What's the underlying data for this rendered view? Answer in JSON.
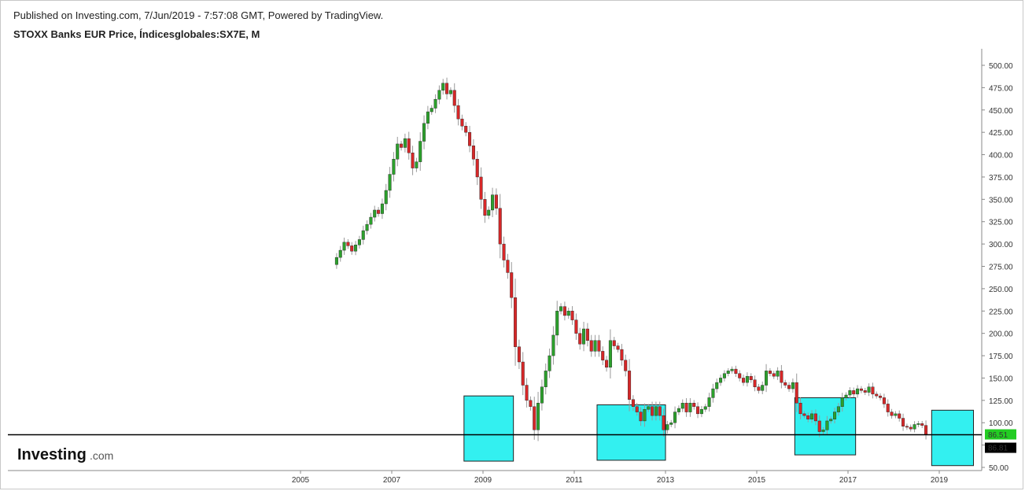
{
  "header": {
    "published": "Published on Investing.com, 7/Jun/2019 - 7:57:08 GMT, Powered by TradingView.",
    "title": "STOXX Banks EUR Price, Índicesglobales:SX7E, M"
  },
  "logo": {
    "main": "Investing",
    "suffix": ".com"
  },
  "colors": {
    "up": "#2ca02c",
    "down": "#d62728",
    "highlight_fill": "#33f0f0",
    "highlight_stroke": "#222222",
    "hline": "#000000",
    "last_badge": "#22cc22",
    "hline_badge": "#000000"
  },
  "chart_data": {
    "type": "candlestick",
    "interval": "M",
    "x_axis": {
      "ticks": [
        "2005",
        "2007",
        "2009",
        "2011",
        "2013",
        "2015",
        "2017",
        "2019"
      ]
    },
    "y_axis": {
      "position": "right",
      "ylim": [
        50,
        510
      ],
      "ticks": [
        "500.00",
        "475.00",
        "450.00",
        "425.00",
        "400.00",
        "375.00",
        "350.00",
        "325.00",
        "300.00",
        "275.00",
        "250.00",
        "225.00",
        "200.00",
        "175.00",
        "150.00",
        "125.00",
        "100.00",
        "75.00",
        "50.00"
      ]
    },
    "start": "2005-10",
    "closes": [
      285,
      293,
      302,
      298,
      292,
      299,
      305,
      315,
      322,
      330,
      338,
      334,
      345,
      360,
      378,
      395,
      412,
      408,
      418,
      402,
      385,
      392,
      415,
      435,
      448,
      452,
      462,
      472,
      480,
      468,
      472,
      455,
      440,
      432,
      425,
      410,
      395,
      375,
      350,
      332,
      338,
      355,
      340,
      300,
      282,
      268,
      240,
      185,
      168,
      142,
      125,
      118,
      92,
      122,
      140,
      158,
      175,
      198,
      225,
      230,
      220,
      225,
      215,
      200,
      188,
      205,
      192,
      180,
      192,
      180,
      170,
      162,
      192,
      186,
      182,
      170,
      158,
      126,
      118,
      112,
      102,
      115,
      118,
      108,
      118,
      108,
      92,
      98,
      100,
      112,
      116,
      122,
      112,
      122,
      118,
      110,
      115,
      118,
      128,
      138,
      145,
      150,
      155,
      158,
      160,
      155,
      150,
      145,
      152,
      148,
      140,
      136,
      142,
      158,
      155,
      152,
      158,
      145,
      142,
      138,
      145,
      122,
      110,
      108,
      104,
      110,
      102,
      90,
      92,
      102,
      104,
      112,
      118,
      128,
      131,
      136,
      132,
      138,
      136,
      134,
      140,
      132,
      130,
      128,
      121,
      112,
      108,
      110,
      105,
      96,
      95,
      93,
      98,
      99,
      97,
      86.81
    ],
    "hline": {
      "value": 86.51,
      "label": "86.51"
    },
    "last_label": "86.81",
    "highlight_boxes": [
      {
        "x_start": "2008-08",
        "x_end": "2009-09",
        "y_low": 57,
        "y_high": 130
      },
      {
        "x_start": "2011-07",
        "x_end": "2013-01",
        "y_low": 58,
        "y_high": 120
      },
      {
        "x_start": "2015-11",
        "x_end": "2017-03",
        "y_low": 64,
        "y_high": 128
      },
      {
        "x_start": "2018-11",
        "x_end": "2019-10",
        "y_low": 52,
        "y_high": 114
      }
    ]
  }
}
